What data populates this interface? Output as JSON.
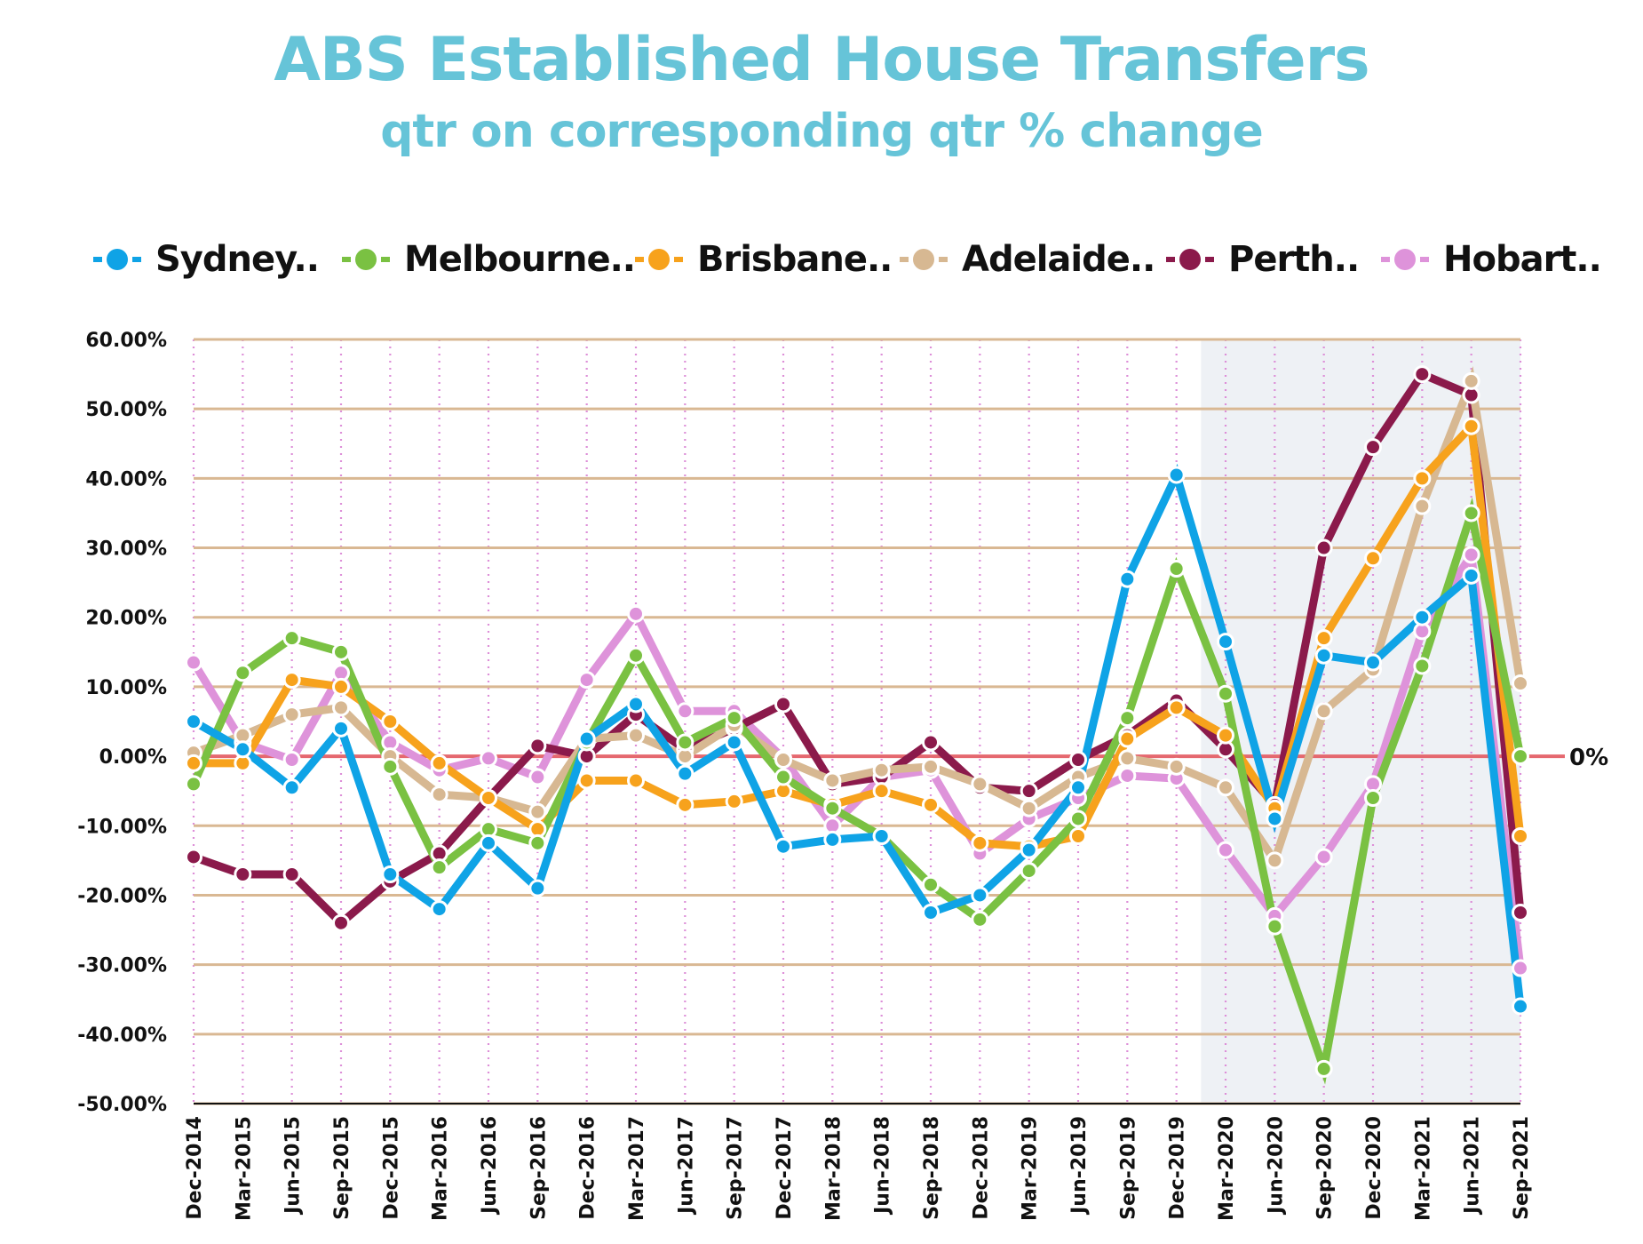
{
  "title": "ABS Established House Transfers",
  "subtitle": "qtr on corresponding qtr % change",
  "chart_data": {
    "type": "line",
    "title": "ABS Established House Transfers",
    "subtitle": "qtr on corresponding qtr % change",
    "xlabel": "",
    "ylabel": "",
    "ylim": [
      -50,
      60
    ],
    "y_ticks": [
      "60.00%",
      "50.00%",
      "40.00%",
      "30.00%",
      "20.00%",
      "10.00%",
      "0.00%",
      "-10.00%",
      "-20.00%",
      "-30.00%",
      "-40.00%",
      "-50.00%"
    ],
    "grid": true,
    "legend_position": "top",
    "zero_line_label": "0%",
    "shaded_period": [
      "Mar-2020",
      "Sep-2021"
    ],
    "categories": [
      "Dec-2014",
      "Mar-2015",
      "Jun-2015",
      "Sep-2015",
      "Dec-2015",
      "Mar-2016",
      "Jun-2016",
      "Sep-2016",
      "Dec-2016",
      "Mar-2017",
      "Jun-2017",
      "Sep-2017",
      "Dec-2017",
      "Mar-2018",
      "Jun-2018",
      "Sep-2018",
      "Dec-2018",
      "Mar-2019",
      "Jun-2019",
      "Sep-2019",
      "Dec-2019",
      "Mar-2020",
      "Jun-2020",
      "Sep-2020",
      "Dec-2020",
      "Mar-2021",
      "Jun-2021",
      "Sep-2021"
    ],
    "series": [
      {
        "name": "Hobart..",
        "color": "#de93da",
        "values": [
          13.5,
          2,
          -0.5,
          12,
          2,
          -2,
          -0.3,
          -3,
          11,
          20.5,
          6.5,
          6.5,
          -0.3,
          -10,
          -3,
          -2,
          -14,
          -9,
          -6,
          -2.8,
          -3.2,
          -13.5,
          -23,
          -14.5,
          -4,
          18,
          29,
          -30.5
        ]
      },
      {
        "name": "Perth..",
        "color": "#8b1a4b",
        "values": [
          -14.5,
          -17,
          -17,
          -24,
          -18,
          -14,
          -6,
          1.5,
          0,
          6,
          1,
          4,
          7.5,
          -4,
          -3,
          2,
          -4.5,
          -5,
          -0.5,
          3,
          8,
          1,
          -7,
          30,
          44.5,
          55,
          52,
          -22.5
        ]
      },
      {
        "name": "Adelaide..",
        "color": "#d7b892",
        "values": [
          0.5,
          3,
          6,
          7,
          0,
          -5.5,
          -6,
          -8,
          2.5,
          3,
          0,
          4.5,
          -0.5,
          -3.5,
          -2,
          -1.5,
          -4,
          -7.5,
          -3,
          -0.3,
          -1.5,
          -4.5,
          -15,
          6.5,
          12.5,
          36,
          54,
          10.5
        ]
      },
      {
        "name": "Brisbane..",
        "color": "#f7a21c",
        "values": [
          -1,
          -1,
          11,
          10,
          5,
          -1,
          -6,
          -10.5,
          -3.5,
          -3.5,
          -7,
          -6.5,
          -5,
          -7,
          -5,
          -7,
          -12.5,
          -13,
          -11.5,
          2.5,
          7,
          3,
          -7.5,
          17,
          28.5,
          40,
          47.5,
          -11.5
        ]
      },
      {
        "name": "Melbourne..",
        "color": "#7ac142",
        "values": [
          -4,
          12,
          17,
          15,
          -1.5,
          -16,
          -10.5,
          -12.5,
          2,
          14.5,
          2,
          5.5,
          -3,
          -7.5,
          -11.5,
          -18.5,
          -23.5,
          -16.5,
          -9,
          5.5,
          27,
          9,
          -24.5,
          -45,
          -6,
          13,
          35,
          0
        ]
      },
      {
        "name": "Sydney..",
        "color": "#0fa3e6",
        "values": [
          5,
          1,
          -4.5,
          4,
          -17,
          -22,
          -12.5,
          -19,
          2.5,
          7.5,
          -2.5,
          2,
          -13,
          -12,
          -11.5,
          -22.5,
          -20,
          -13.5,
          -4.5,
          25.5,
          40.5,
          16.5,
          -9,
          14.5,
          13.5,
          20,
          26,
          -36
        ]
      }
    ]
  },
  "legend": [
    "Sydney..",
    "Melbourne..",
    "Brisbane..",
    "Adelaide..",
    "Perth..",
    "Hobart.."
  ],
  "legend_colors": [
    "#0fa3e6",
    "#7ac142",
    "#f7a21c",
    "#d7b892",
    "#8b1a4b",
    "#de93da"
  ]
}
